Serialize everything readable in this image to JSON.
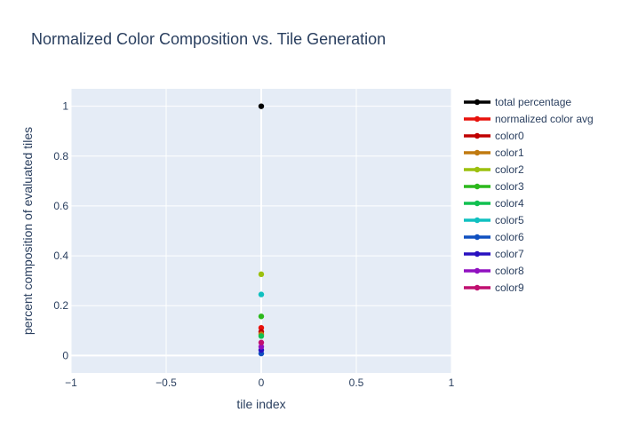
{
  "chart_data": {
    "type": "scatter",
    "title": "Normalized Color Composition vs. Tile Generation",
    "xlabel": "tile index",
    "ylabel": "percent composition of evaluated tiles",
    "xlim": [
      -1,
      1
    ],
    "ylim": [
      -0.07,
      1.07
    ],
    "x_ticks": [
      -1,
      -0.5,
      0,
      0.5,
      1
    ],
    "x_tick_labels": [
      "−1",
      "−0.5",
      "0",
      "0.5",
      "1"
    ],
    "y_ticks": [
      0,
      0.2,
      0.4,
      0.6,
      0.8,
      1
    ],
    "y_tick_labels": [
      "0",
      "0.2",
      "0.4",
      "0.6",
      "0.8",
      "1"
    ],
    "grid": true,
    "legend_position": "right",
    "series": [
      {
        "name": "total percentage",
        "color": "#000000",
        "x": [
          0
        ],
        "y": [
          1.0
        ]
      },
      {
        "name": "normalized color avg",
        "color": "#e8120c",
        "x": [
          0
        ],
        "y": [
          0.111
        ]
      },
      {
        "name": "color0",
        "color": "#c00000",
        "x": [
          0
        ],
        "y": [
          0.095
        ]
      },
      {
        "name": "color1",
        "color": "#c07a10",
        "x": [
          0
        ],
        "y": [
          0.085
        ]
      },
      {
        "name": "color2",
        "color": "#9cc00e",
        "x": [
          0
        ],
        "y": [
          0.326
        ]
      },
      {
        "name": "color3",
        "color": "#2cb81c",
        "x": [
          0
        ],
        "y": [
          0.157
        ]
      },
      {
        "name": "color4",
        "color": "#10c050",
        "x": [
          0
        ],
        "y": [
          0.078
        ]
      },
      {
        "name": "color5",
        "color": "#10c0c0",
        "x": [
          0
        ],
        "y": [
          0.245
        ]
      },
      {
        "name": "color6",
        "color": "#1050c0",
        "x": [
          0
        ],
        "y": [
          0.008
        ]
      },
      {
        "name": "color7",
        "color": "#2810c0",
        "x": [
          0
        ],
        "y": [
          0.022
        ]
      },
      {
        "name": "color8",
        "color": "#9010c0",
        "x": [
          0
        ],
        "y": [
          0.035
        ]
      },
      {
        "name": "color9",
        "color": "#c01070",
        "x": [
          0
        ],
        "y": [
          0.052
        ]
      }
    ]
  }
}
